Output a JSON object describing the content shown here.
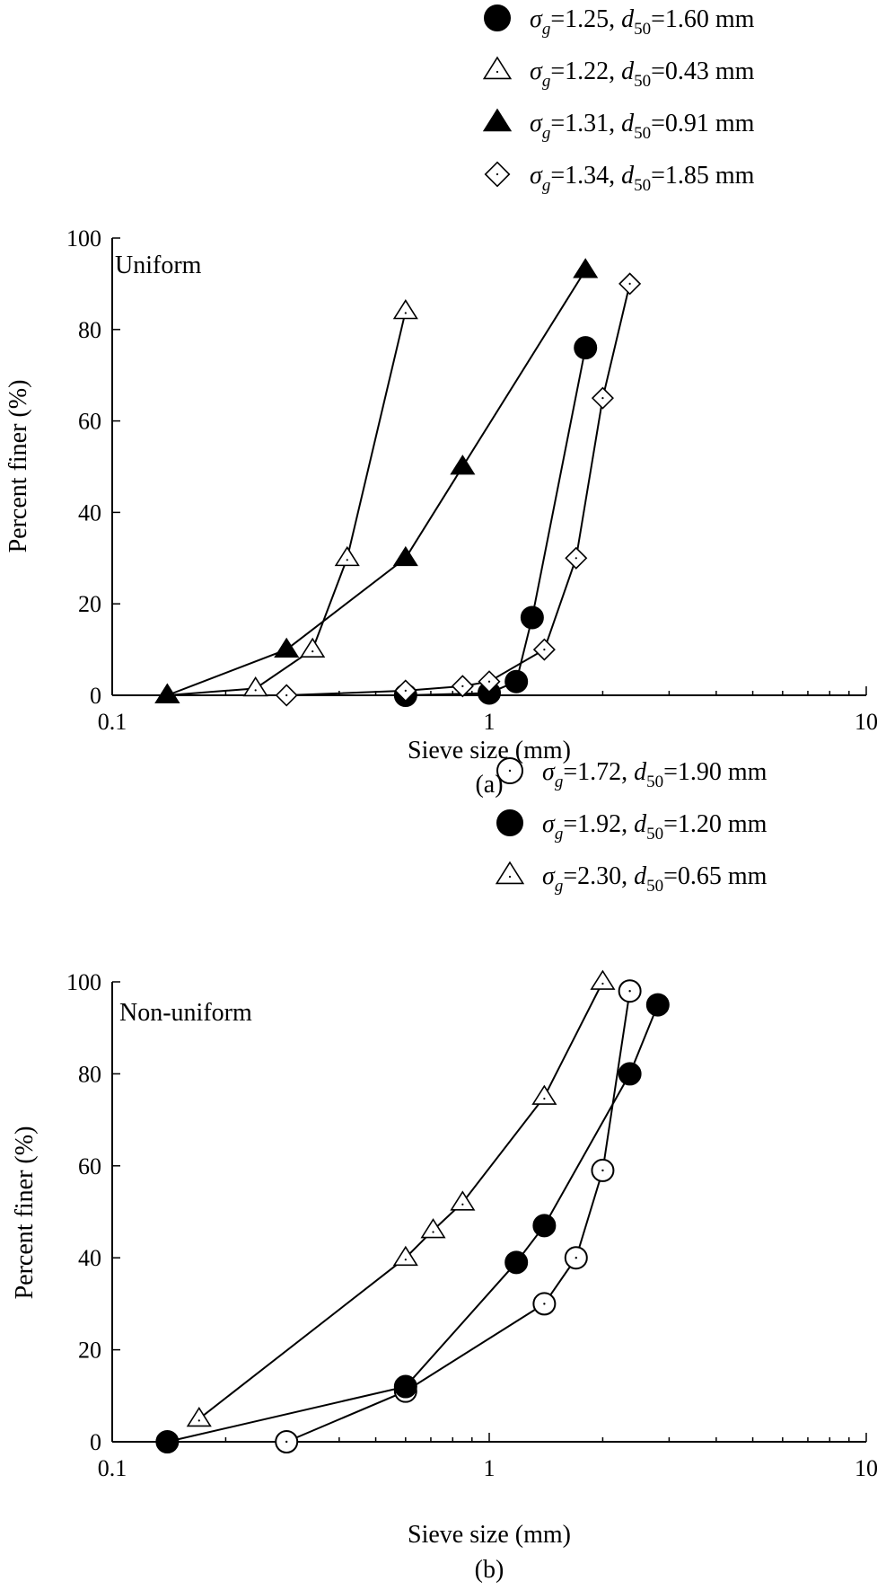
{
  "chart_data": [
    {
      "type": "line",
      "panel": "(a)",
      "annotation": "Uniform",
      "xlabel": "Sieve size (mm)",
      "ylabel": "Percent finer (%)",
      "x_scale": "log",
      "xlim": [
        0.1,
        10
      ],
      "ylim": [
        0,
        100
      ],
      "x_ticks": [
        "0.1",
        "1",
        "10"
      ],
      "y_ticks": [
        "0",
        "20",
        "40",
        "60",
        "80",
        "100"
      ],
      "grid": false,
      "legend_position": "top-right",
      "series": [
        {
          "sigma": "1.25",
          "d50": "1.60",
          "marker": "filled-circle",
          "x": [
            0.6,
            1.0,
            1.18,
            1.3,
            1.8
          ],
          "y": [
            0,
            0.5,
            3,
            17,
            76
          ]
        },
        {
          "sigma": "1.22",
          "d50": "0.43",
          "marker": "open-triangle",
          "x": [
            0.14,
            0.24,
            0.34,
            0.42,
            0.6
          ],
          "y": [
            0,
            1.5,
            10,
            30,
            84
          ]
        },
        {
          "sigma": "1.31",
          "d50": "0.91",
          "marker": "filled-triangle",
          "x": [
            0.14,
            0.29,
            0.6,
            0.85,
            1.8
          ],
          "y": [
            0,
            10,
            30,
            50,
            93
          ]
        },
        {
          "sigma": "1.34",
          "d50": "1.85",
          "marker": "open-diamond",
          "x": [
            0.29,
            0.6,
            0.85,
            1.0,
            1.4,
            1.7,
            2.0,
            2.36
          ],
          "y": [
            0,
            1,
            2,
            3,
            10,
            30,
            65,
            90
          ]
        }
      ]
    },
    {
      "type": "line",
      "panel": "(b)",
      "annotation": "Non-uniform",
      "xlabel": "Sieve size (mm)",
      "ylabel": "Percent finer (%)",
      "x_scale": "log",
      "xlim": [
        0.1,
        10
      ],
      "ylim": [
        0,
        100
      ],
      "x_ticks": [
        "0.1",
        "1",
        "10"
      ],
      "y_ticks": [
        "0",
        "20",
        "40",
        "60",
        "80",
        "100"
      ],
      "grid": false,
      "legend_position": "top-right",
      "series": [
        {
          "sigma": "1.72",
          "d50": "1.90",
          "marker": "open-circle",
          "x": [
            0.29,
            0.6,
            1.4,
            1.7,
            2.0,
            2.36
          ],
          "y": [
            0,
            11,
            30,
            40,
            59,
            98
          ]
        },
        {
          "sigma": "1.92",
          "d50": "1.20",
          "marker": "filled-circle",
          "x": [
            0.14,
            0.6,
            1.18,
            1.4,
            2.36,
            2.8
          ],
          "y": [
            0,
            12,
            39,
            47,
            80,
            95
          ]
        },
        {
          "sigma": "2.30",
          "d50": "0.65",
          "marker": "open-triangle",
          "x": [
            0.17,
            0.6,
            0.71,
            0.85,
            1.4,
            2.0
          ],
          "y": [
            5,
            40,
            46,
            52,
            75,
            100
          ]
        }
      ]
    }
  ]
}
